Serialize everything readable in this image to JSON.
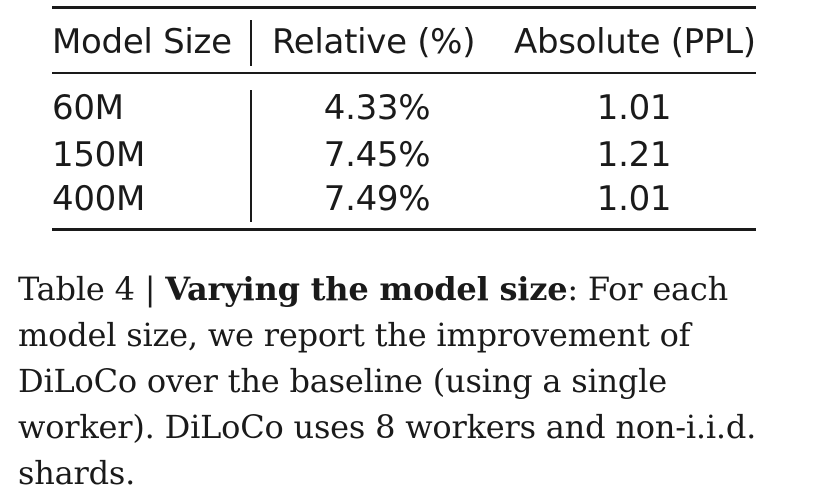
{
  "table": {
    "headers": [
      "Model Size",
      "Relative (%)",
      "Absolute (PPL)"
    ],
    "rows": [
      [
        "60M",
        "4.33%",
        "1.01"
      ],
      [
        "150M",
        "7.45%",
        "1.21"
      ],
      [
        "400M",
        "7.49%",
        "1.01"
      ]
    ]
  },
  "caption": {
    "label": "Table 4 | ",
    "title": "Varying the model size",
    "text": ": For each model size, we report the improvement of DiLoCo over the baseline (using a single worker). DiLoCo uses 8 workers and non-i.i.d. shards."
  }
}
